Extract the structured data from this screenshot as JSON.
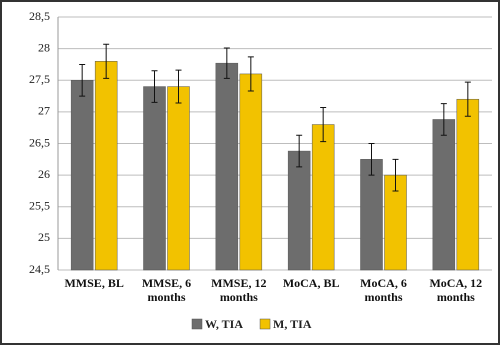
{
  "chart_data": {
    "type": "bar",
    "categories": [
      "MMSE, BL",
      "MMSE, 6 months",
      "MMSE, 12 months",
      "MoCA, BL",
      "MoCA, 6 months",
      "MoCA, 12 months"
    ],
    "series": [
      {
        "name": "W, TIA",
        "color": "#6d6d6d",
        "values": [
          27.5,
          27.4,
          27.77,
          26.38,
          26.25,
          26.88
        ],
        "errors": [
          0.25,
          0.25,
          0.24,
          0.25,
          0.25,
          0.25
        ]
      },
      {
        "name": "M, TIA",
        "color": "#f2c200",
        "values": [
          27.8,
          27.4,
          27.6,
          26.8,
          26.0,
          27.2
        ],
        "errors": [
          0.27,
          0.26,
          0.27,
          0.27,
          0.25,
          0.27
        ]
      }
    ],
    "ylim": [
      24.5,
      28.5
    ],
    "yticks": [
      {
        "value": 24.5,
        "label": "24,5"
      },
      25,
      {
        "value": 25.5,
        "label": "25,5"
      },
      26,
      {
        "value": 26.5,
        "label": "26,5"
      },
      27,
      {
        "value": 27.5,
        "label": "27,5"
      },
      28,
      {
        "value": 28.5,
        "label": "28,5"
      }
    ],
    "grid": true
  }
}
